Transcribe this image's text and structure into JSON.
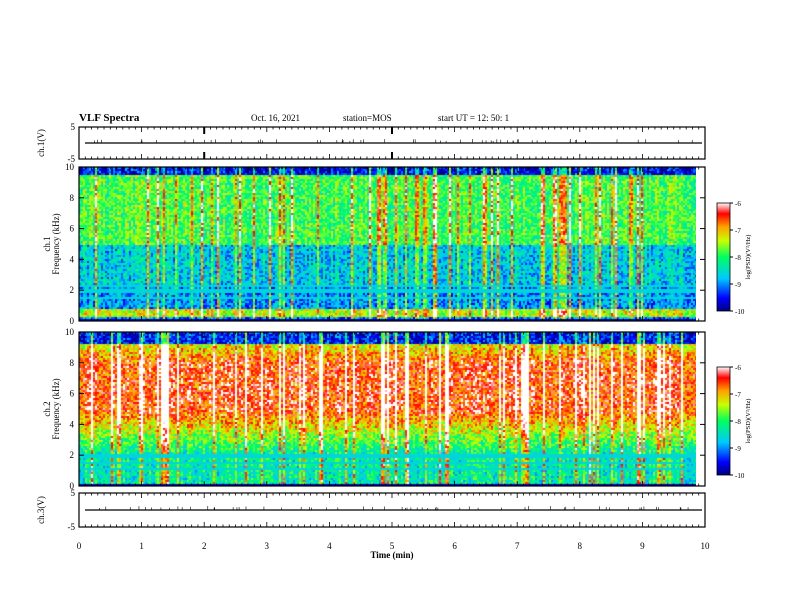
{
  "header": {
    "title": "VLF Spectra",
    "date": "Oct. 16, 2021",
    "station": "station=MOS",
    "start": "start UT = 12: 50: 1"
  },
  "chart_data": [
    {
      "type": "line",
      "panel": "ch.1",
      "ylabel": "ch.1(V)",
      "ylim": [
        -5,
        5
      ],
      "yticks": [
        "5",
        "-5"
      ],
      "x": [
        0,
        10
      ],
      "values": [
        0.0,
        0.0
      ]
    },
    {
      "type": "heatmap",
      "panel": "ch.1 spectrogram",
      "ylabel_line1": "ch.1",
      "ylabel_line2": "Frequency (kHz)",
      "xlim": [
        0,
        10
      ],
      "ylim": [
        0,
        10
      ],
      "yticks": [
        "0",
        "2",
        "4",
        "6",
        "8",
        "10"
      ],
      "data_end_x": 9.85,
      "colorbar": {
        "label": "log(PSD)(V²/Hz)",
        "range": [
          -10,
          -6
        ],
        "ticks": [
          "-6",
          "-7",
          "-8",
          "-9",
          "-10"
        ]
      },
      "description_values": {
        "high_power_band_khz": [
          0.3,
          0.9
        ],
        "lines_khz": [
          1.6,
          2.0,
          2.3
        ]
      }
    },
    {
      "type": "heatmap",
      "panel": "ch.2 spectrogram",
      "ylabel_line1": "ch.2",
      "ylabel_line2": "Frequency (kHz)",
      "xlim": [
        0,
        10
      ],
      "ylim": [
        0,
        10
      ],
      "yticks": [
        "0",
        "2",
        "4",
        "6",
        "8",
        "10"
      ],
      "data_end_x": 9.85,
      "colorbar": {
        "label": "log(PSD)(V²/Hz)",
        "range": [
          -10,
          -6
        ],
        "ticks": [
          "-6",
          "-7",
          "-8",
          "-9",
          "-10"
        ]
      },
      "description_values": {
        "high_power_band_khz": [
          5.0,
          8.0
        ],
        "lines_khz": [
          1.2,
          1.6,
          2.0
        ]
      }
    },
    {
      "type": "line",
      "panel": "ch.3",
      "ylabel": "ch.3(V)",
      "ylim": [
        -5,
        5
      ],
      "yticks": [
        "5",
        "-5"
      ],
      "x": [
        0,
        10
      ],
      "values": [
        0.0,
        0.0
      ]
    }
  ],
  "xaxis": {
    "label": "Time (min)",
    "ticks": [
      "0",
      "1",
      "2",
      "3",
      "4",
      "5",
      "6",
      "7",
      "8",
      "9",
      "10"
    ]
  },
  "colors": {
    "frame": "#000000",
    "background": "#ffffff"
  }
}
